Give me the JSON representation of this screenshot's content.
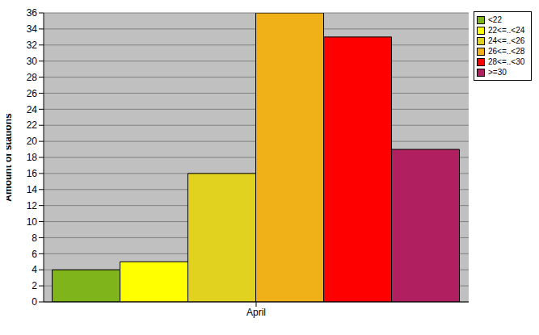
{
  "chart_data": {
    "type": "bar",
    "categories": [
      "April"
    ],
    "y_label": "Amount of stations",
    "series": [
      {
        "name": "<22",
        "color": "#7fb51a",
        "values": [
          4
        ]
      },
      {
        "name": "22<=..<24",
        "color": "#ffff00",
        "values": [
          5
        ]
      },
      {
        "name": "24<=..<26",
        "color": "#e0d21e",
        "values": [
          16
        ]
      },
      {
        "name": "26<=..<28",
        "color": "#f0b018",
        "values": [
          36
        ]
      },
      {
        "name": "28<=..<30",
        "color": "#ff0000",
        "values": [
          33
        ]
      },
      {
        "name": ">=30",
        "color": "#b02060",
        "values": [
          19
        ]
      }
    ],
    "ylim": [
      0,
      36
    ],
    "yticks": [
      0,
      2,
      4,
      6,
      8,
      10,
      12,
      14,
      16,
      18,
      20,
      22,
      24,
      26,
      28,
      30,
      32,
      34,
      36
    ],
    "grid": true,
    "legend": "top right"
  }
}
